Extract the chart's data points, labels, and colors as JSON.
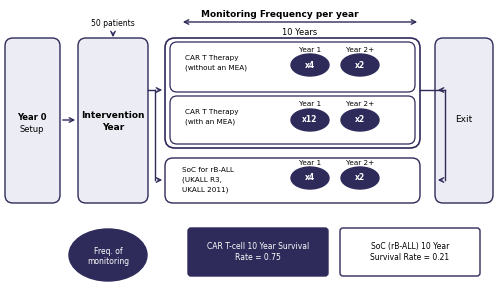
{
  "dark_color": "#2E2A5A",
  "light_bg": "#ECEDF4",
  "white": "#FFFFFF",
  "bg": "#FFFFFF",
  "title": "Monitoring Frequency per year",
  "subtitle": "10 Years",
  "arm1_line1": "CAR T Therapy",
  "arm1_line2": "(without an MEA)",
  "arm2_line1": "CAR T Therapy",
  "arm2_line2": "(with an MEA)",
  "arm3_line1": "SoC for rB-ALL",
  "arm3_line2": "(UKALL R3,",
  "arm3_line3": "UKALL 2011)",
  "year1_label": "Year 1",
  "year2_label": "Year 2+",
  "arm1_x4": "x4",
  "arm1_x2": "x2",
  "arm2_x12": "x12",
  "arm2_x2": "x2",
  "arm3_x4": "x4",
  "arm3_x2": "x2",
  "year0_line1": "Year 0",
  "year0_line2": "Setup",
  "intervention_line1": "Intervention",
  "intervention_line2": "Year",
  "exit_label": "Exit",
  "patients_label": "50 patients",
  "freq_line1": "Freq. of",
  "freq_line2": "monitoring",
  "car_survival_label": "CAR T-cell 10 Year Survival\nRate = 0.75",
  "soc_survival_label": "SoC (rB-ALL) 10 Year\nSurvival Rate = 0.21"
}
